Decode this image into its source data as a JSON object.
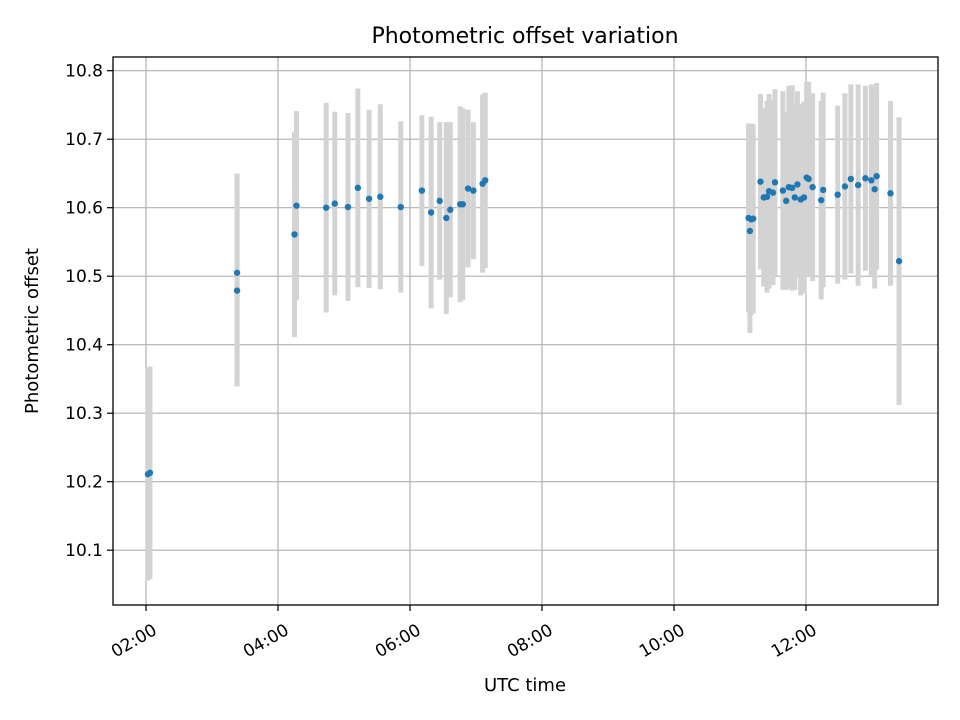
{
  "chart_data": {
    "type": "scatter",
    "title": "Photometric offset variation",
    "xlabel": "UTC time",
    "ylabel": "Photometric offset",
    "x_unit": "hours",
    "xlim": [
      1.5,
      14.0
    ],
    "ylim": [
      10.02,
      10.82
    ],
    "xticks": [
      2,
      4,
      6,
      8,
      10,
      12
    ],
    "xtick_labels": [
      "02:00",
      "04:00",
      "06:00",
      "08:00",
      "10:00",
      "12:00"
    ],
    "yticks": [
      10.1,
      10.2,
      10.3,
      10.4,
      10.5,
      10.6,
      10.7,
      10.8
    ],
    "ytick_labels": [
      "10.1",
      "10.2",
      "10.3",
      "10.4",
      "10.5",
      "10.6",
      "10.7",
      "10.8"
    ],
    "grid": true,
    "colors": {
      "points": "#1f77b4",
      "errorbars": "#d3d3d3"
    },
    "series": [
      {
        "x": [
          2.03,
          2.06,
          3.38,
          3.38,
          4.25,
          4.28,
          4.73,
          4.86,
          5.06,
          5.21,
          5.38,
          5.55,
          5.86,
          6.18,
          6.32,
          6.45,
          6.55,
          6.61,
          6.76,
          6.8,
          6.88,
          6.96,
          7.1,
          7.14,
          11.13,
          11.15,
          11.17,
          11.2,
          11.31,
          11.36,
          11.41,
          11.44,
          11.5,
          11.53,
          11.65,
          11.7,
          11.74,
          11.79,
          11.83,
          11.87,
          11.92,
          11.97,
          12.01,
          12.04,
          12.1,
          12.23,
          12.26,
          12.48,
          12.59,
          12.68,
          12.79,
          12.9,
          12.99,
          13.04,
          13.07,
          13.28,
          13.41
        ],
        "y": [
          10.211,
          10.213,
          10.479,
          10.505,
          10.561,
          10.603,
          10.6,
          10.606,
          10.601,
          10.629,
          10.613,
          10.616,
          10.601,
          10.625,
          10.593,
          10.61,
          10.585,
          10.597,
          10.605,
          10.605,
          10.628,
          10.625,
          10.635,
          10.64,
          10.585,
          10.566,
          10.583,
          10.584,
          10.638,
          10.615,
          10.616,
          10.624,
          10.622,
          10.637,
          10.625,
          10.61,
          10.63,
          10.629,
          10.615,
          10.634,
          10.612,
          10.615,
          10.644,
          10.642,
          10.63,
          10.611,
          10.626,
          10.619,
          10.631,
          10.642,
          10.633,
          10.643,
          10.64,
          10.627,
          10.646,
          10.621,
          10.522
        ],
        "yerr": [
          0.155,
          0.155,
          0.14,
          0.145,
          0.15,
          0.138,
          0.153,
          0.134,
          0.137,
          0.145,
          0.13,
          0.135,
          0.125,
          0.11,
          0.14,
          0.115,
          0.14,
          0.128,
          0.143,
          0.14,
          0.115,
          0.1,
          0.13,
          0.128,
          0.138,
          0.149,
          0.14,
          0.138,
          0.128,
          0.13,
          0.14,
          0.142,
          0.135,
          0.136,
          0.145,
          0.13,
          0.148,
          0.15,
          0.135,
          0.136,
          0.14,
          0.14,
          0.14,
          0.142,
          0.137,
          0.145,
          0.142,
          0.13,
          0.136,
          0.138,
          0.147,
          0.135,
          0.14,
          0.145,
          0.136,
          0.135,
          0.21
        ]
      }
    ]
  }
}
